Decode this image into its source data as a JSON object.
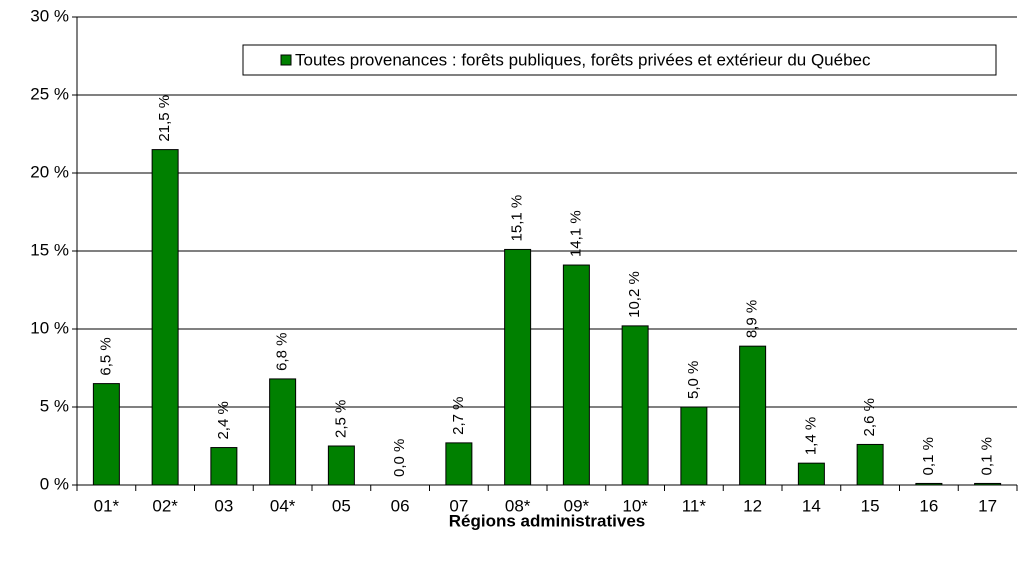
{
  "chart_data": {
    "type": "bar",
    "x_label": "Régions administratives",
    "categories": [
      "01*",
      "02*",
      "03",
      "04*",
      "05",
      "06",
      "07",
      "08*",
      "09*",
      "10*",
      "11*",
      "12",
      "14",
      "15",
      "16",
      "17"
    ],
    "series": [
      {
        "name": "Toutes provenances : forêts publiques, forêts privées et extérieur du Québec",
        "color": "#008000",
        "values": [
          6.5,
          21.5,
          2.4,
          6.8,
          2.5,
          0.0,
          2.7,
          15.1,
          14.1,
          10.2,
          5.0,
          8.9,
          1.4,
          2.6,
          0.1,
          0.1
        ],
        "value_labels": [
          "6,5 %",
          "21,5 %",
          "2,4 %",
          "6,8 %",
          "2,5 %",
          "0,0 %",
          "2,7 %",
          "15,1 %",
          "14,1 %",
          "10,2 %",
          "5,0 %",
          "8,9 %",
          "1,4 %",
          "2,6 %",
          "0,1 %",
          "0,1 %"
        ]
      }
    ],
    "ylim": [
      0,
      30
    ],
    "yticks": [
      {
        "value": 0,
        "label": "0 %"
      },
      {
        "value": 5,
        "label": "5 %"
      },
      {
        "value": 10,
        "label": "10 %"
      },
      {
        "value": 15,
        "label": "15 %"
      },
      {
        "value": 20,
        "label": "20 %"
      },
      {
        "value": 25,
        "label": "25 %"
      },
      {
        "value": 30,
        "label": "30 %"
      }
    ],
    "grid": true,
    "legend": "top-right"
  }
}
